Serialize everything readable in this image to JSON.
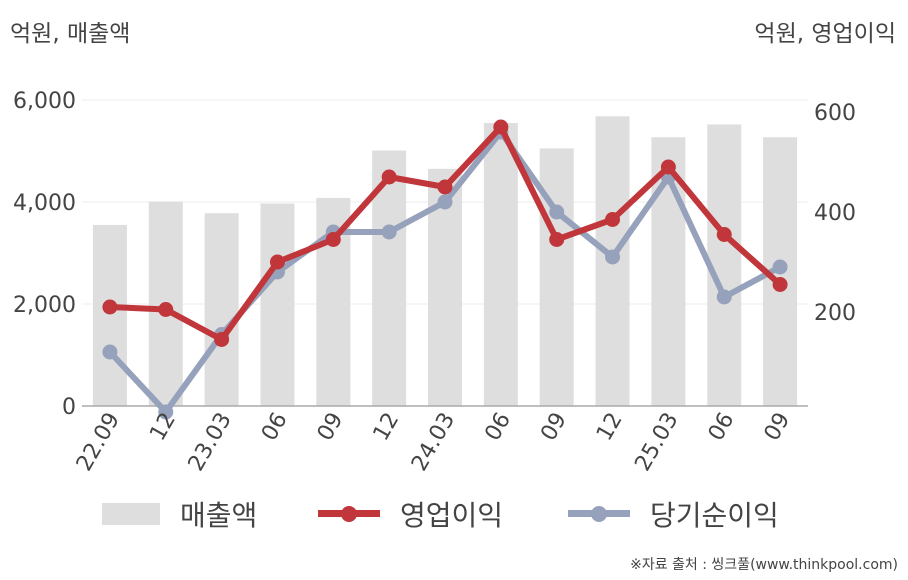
{
  "units": {
    "left": "억원, 매출액",
    "right": "억원, 영업이익"
  },
  "source": "※자료 출처 : 씽크풀(www.thinkpool.com)",
  "colors": {
    "revenue": "#dedede",
    "operating_profit": "#c0363a",
    "net_income": "#96a1bb",
    "axis": "#aaaaaa",
    "grid": "#eeeeee"
  },
  "chart_data": {
    "type": "bar",
    "categories": [
      "22.09",
      "12",
      "23.03",
      "06",
      "09",
      "12",
      "24.03",
      "06",
      "09",
      "12",
      "25.03",
      "06",
      "09"
    ],
    "y_left": {
      "range": [
        0,
        6000
      ],
      "ticks": [
        0,
        2000,
        4000,
        6000
      ],
      "tick_labels": [
        "0",
        "2,000",
        "4,000",
        "6,000"
      ]
    },
    "y_right": {
      "range": [
        0,
        600
      ],
      "ticks": [
        200,
        400,
        600
      ],
      "tick_labels": [
        "200",
        "400",
        "600"
      ]
    },
    "grid": true,
    "legend_position": "bottom",
    "series": [
      {
        "name": "매출액",
        "type": "bar",
        "axis": "left",
        "values": [
          3550,
          4010,
          3780,
          3970,
          4080,
          5010,
          4650,
          5550,
          5050,
          5680,
          5270,
          5520,
          5270
        ]
      },
      {
        "name": "영업이익",
        "type": "line",
        "axis": "right",
        "values": [
          210,
          205,
          145,
          300,
          345,
          470,
          450,
          570,
          345,
          385,
          490,
          355,
          255
        ]
      },
      {
        "name": "당기순이익",
        "type": "line",
        "axis": "right",
        "values": [
          120,
          0,
          155,
          280,
          360,
          360,
          420,
          560,
          400,
          310,
          470,
          230,
          290
        ]
      }
    ]
  }
}
